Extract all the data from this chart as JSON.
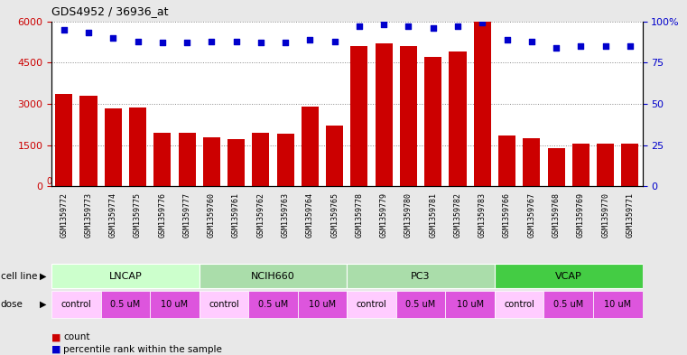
{
  "title": "GDS4952 / 36936_at",
  "samples": [
    "GSM1359772",
    "GSM1359773",
    "GSM1359774",
    "GSM1359775",
    "GSM1359776",
    "GSM1359777",
    "GSM1359760",
    "GSM1359761",
    "GSM1359762",
    "GSM1359763",
    "GSM1359764",
    "GSM1359765",
    "GSM1359778",
    "GSM1359779",
    "GSM1359780",
    "GSM1359781",
    "GSM1359782",
    "GSM1359783",
    "GSM1359766",
    "GSM1359767",
    "GSM1359768",
    "GSM1359769",
    "GSM1359770",
    "GSM1359771"
  ],
  "counts": [
    3350,
    3280,
    2850,
    2870,
    1950,
    1950,
    1800,
    1720,
    1950,
    1900,
    2900,
    2200,
    5100,
    5200,
    5100,
    4700,
    4900,
    6050,
    1850,
    1750,
    1400,
    1550,
    1550,
    1550
  ],
  "percentile_ranks": [
    95,
    93,
    90,
    88,
    87,
    87,
    88,
    88,
    87,
    87,
    89,
    88,
    97,
    98,
    97,
    96,
    97,
    99,
    89,
    88,
    84,
    85,
    85,
    85
  ],
  "bar_color": "#cc0000",
  "dot_color": "#0000cc",
  "ylim_left": [
    0,
    6000
  ],
  "ylim_right": [
    0,
    100
  ],
  "yticks_left": [
    0,
    1500,
    3000,
    4500,
    6000
  ],
  "yticks_right": [
    0,
    25,
    50,
    75,
    100
  ],
  "grid_color": "#888888",
  "cell_line_configs": [
    {
      "name": "LNCAP",
      "start": 0,
      "end": 5,
      "color": "#ccffcc"
    },
    {
      "name": "NCIH660",
      "start": 6,
      "end": 11,
      "color": "#aaddaa"
    },
    {
      "name": "PC3",
      "start": 12,
      "end": 17,
      "color": "#aaddaa"
    },
    {
      "name": "VCAP",
      "start": 18,
      "end": 23,
      "color": "#44cc44"
    }
  ],
  "dose_configs": [
    {
      "label": "control",
      "start": 0,
      "end": 1,
      "color": "#ffccff"
    },
    {
      "label": "0.5 uM",
      "start": 2,
      "end": 3,
      "color": "#dd55dd"
    },
    {
      "label": "10 uM",
      "start": 4,
      "end": 5,
      "color": "#dd55dd"
    },
    {
      "label": "control",
      "start": 6,
      "end": 7,
      "color": "#ffccff"
    },
    {
      "label": "0.5 uM",
      "start": 8,
      "end": 9,
      "color": "#dd55dd"
    },
    {
      "label": "10 uM",
      "start": 10,
      "end": 11,
      "color": "#dd55dd"
    },
    {
      "label": "control",
      "start": 12,
      "end": 13,
      "color": "#ffccff"
    },
    {
      "label": "0.5 uM",
      "start": 14,
      "end": 15,
      "color": "#dd55dd"
    },
    {
      "label": "10 uM",
      "start": 16,
      "end": 17,
      "color": "#dd55dd"
    },
    {
      "label": "control",
      "start": 18,
      "end": 19,
      "color": "#ffccff"
    },
    {
      "label": "0.5 uM",
      "start": 20,
      "end": 21,
      "color": "#dd55dd"
    },
    {
      "label": "10 uM",
      "start": 22,
      "end": 23,
      "color": "#dd55dd"
    }
  ],
  "tick_label_color_left": "#cc0000",
  "tick_label_color_right": "#0000cc",
  "background_color": "#e8e8e8",
  "plot_bg_color": "#ffffff",
  "xtick_bg_color": "#cccccc"
}
